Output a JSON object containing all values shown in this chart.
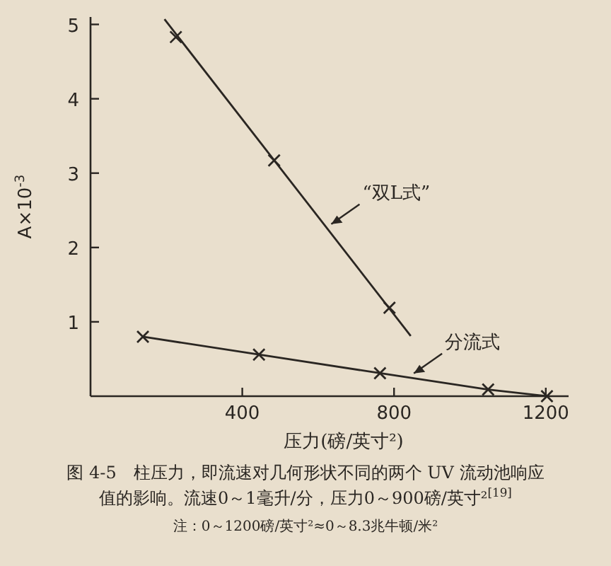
{
  "chart_data": {
    "type": "line",
    "ylabel": "A×10$^{-3}$",
    "xlabel": "压力(磅/英寸²)",
    "xlim": [
      0,
      1260
    ],
    "ylim": [
      0,
      5.1
    ],
    "xticks": [
      400,
      800,
      1200
    ],
    "yticks": [
      1,
      2,
      3,
      4,
      5
    ],
    "grid": false,
    "series": [
      {
        "name": "“双L式”",
        "color": "#2a2622",
        "marker": "none",
        "x": [
          195,
          844
        ],
        "values": [
          5.07,
          0.81
        ]
      },
      {
        "type": "scatter",
        "color": "#2a2622",
        "marker": "cross",
        "x": [
          225,
          484,
          788
        ],
        "values": [
          4.83,
          3.17,
          1.19
        ]
      },
      {
        "name": "分流式",
        "color": "#2a2622",
        "marker": "cross",
        "x": [
          138,
          444,
          763,
          1048,
          1203
        ],
        "values": [
          0.8,
          0.56,
          0.31,
          0.09,
          0.0
        ]
      }
    ],
    "annotations": [
      "图 4-5　柱压力，即流速对几何形状不同的两个 UV 流动池响应",
      "值的影响。流速0～1毫升/分，压力0～900磅/英寸²$^{[19]}$",
      "注：0～1200磅/英寸²≈0～8.3兆牛顿/米²"
    ]
  }
}
